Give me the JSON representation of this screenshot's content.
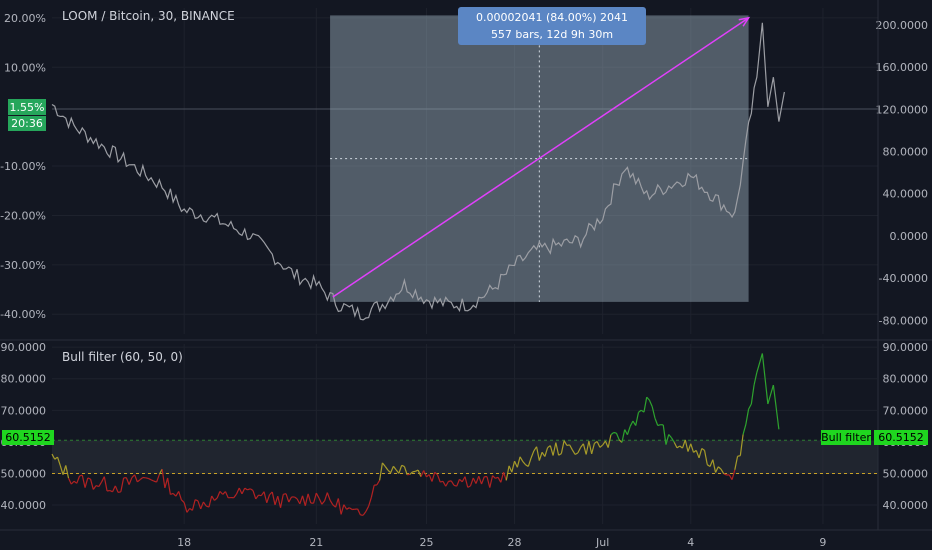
{
  "chart_data": [
    {
      "type": "line",
      "title": "LOOM / Bitcoin, 30, BINANCE",
      "left_axis": {
        "unit": "percent",
        "ticks": [
          "20.00%",
          "10.00%",
          "-10.00%",
          "-20.00%",
          "-30.00%",
          "-40.00%"
        ],
        "range": [
          -44,
          22
        ]
      },
      "right_axis": {
        "ticks": [
          "200.0000",
          "160.0000",
          "120.0000",
          "80.0000",
          "40.0000",
          "0.0000",
          "-40.0000",
          "-80.0000"
        ],
        "range": [
          -93,
          216
        ]
      },
      "x_ticks": [
        "18",
        "21",
        "25",
        "28",
        "Jul",
        "4",
        "9"
      ],
      "x": [
        0,
        4,
        8,
        12,
        16,
        20,
        24,
        28,
        32,
        36,
        40,
        44,
        48,
        52,
        56,
        60,
        64,
        68,
        72,
        76,
        80,
        84,
        88,
        92,
        96,
        100,
        104,
        108,
        112,
        116,
        120,
        124,
        128
      ],
      "series": [
        {
          "values": [
            2.5,
            -2,
            -5,
            -8,
            -11,
            -14,
            -19,
            -20,
            -22,
            -24,
            -28,
            -32,
            -34,
            -38,
            -40,
            -38,
            -34,
            -37,
            -38,
            -38,
            -35,
            -30,
            -27,
            -26,
            -25,
            -20,
            -10,
            -16,
            -14,
            -12,
            -16,
            -20,
            8
          ]
        }
      ],
      "current_value_label": "1.55%",
      "countdown_label": "20:36",
      "measure": {
        "line1": "0.00002041 (84.00%) 2041",
        "line2": "557 bars, 12d 9h 30m",
        "from_x": 50.5,
        "to_x": 126.5,
        "from_pct": -37.5,
        "to_pct": 20.5
      }
    },
    {
      "type": "line",
      "title": "Bull filter (60, 50, 0)",
      "axis": {
        "ticks": [
          "90.0000",
          "80.0000",
          "70.0000",
          "60.0000",
          "50.0000",
          "40.0000"
        ],
        "range": [
          34,
          91
        ]
      },
      "upper_level": 60.5152,
      "lower_level": 50,
      "value_label": "60.5152",
      "series_tag": "Bull filter",
      "x": [
        0,
        4,
        8,
        12,
        16,
        20,
        24,
        28,
        32,
        36,
        40,
        44,
        48,
        52,
        56,
        60,
        64,
        68,
        72,
        76,
        80,
        84,
        88,
        92,
        96,
        100,
        104,
        108,
        112,
        116,
        120,
        124,
        128
      ],
      "series": [
        {
          "values": [
            55,
            48,
            47,
            46,
            48,
            49,
            40,
            41,
            43,
            44,
            42,
            41,
            43,
            40,
            36,
            52,
            52,
            50,
            48,
            48,
            47,
            52,
            56,
            58,
            58,
            59,
            62,
            73,
            60,
            58,
            53,
            50,
            82
          ]
        }
      ]
    }
  ],
  "colors": {
    "background": "#131722",
    "grid": "#1e222d",
    "price_line": "#9c9ea4",
    "measure_fill": "#9db2bf",
    "measure_arrow": "#e040fb",
    "measure_label_bg": "#5b86c4",
    "bull": "#2ea32e",
    "neutral": "#a69b2a",
    "bear": "#b22222",
    "tag_green": "#1fd61f",
    "tag_teal": "#26a65b",
    "level_green": "#2e7d32",
    "level_yellow": "#c9a227"
  }
}
